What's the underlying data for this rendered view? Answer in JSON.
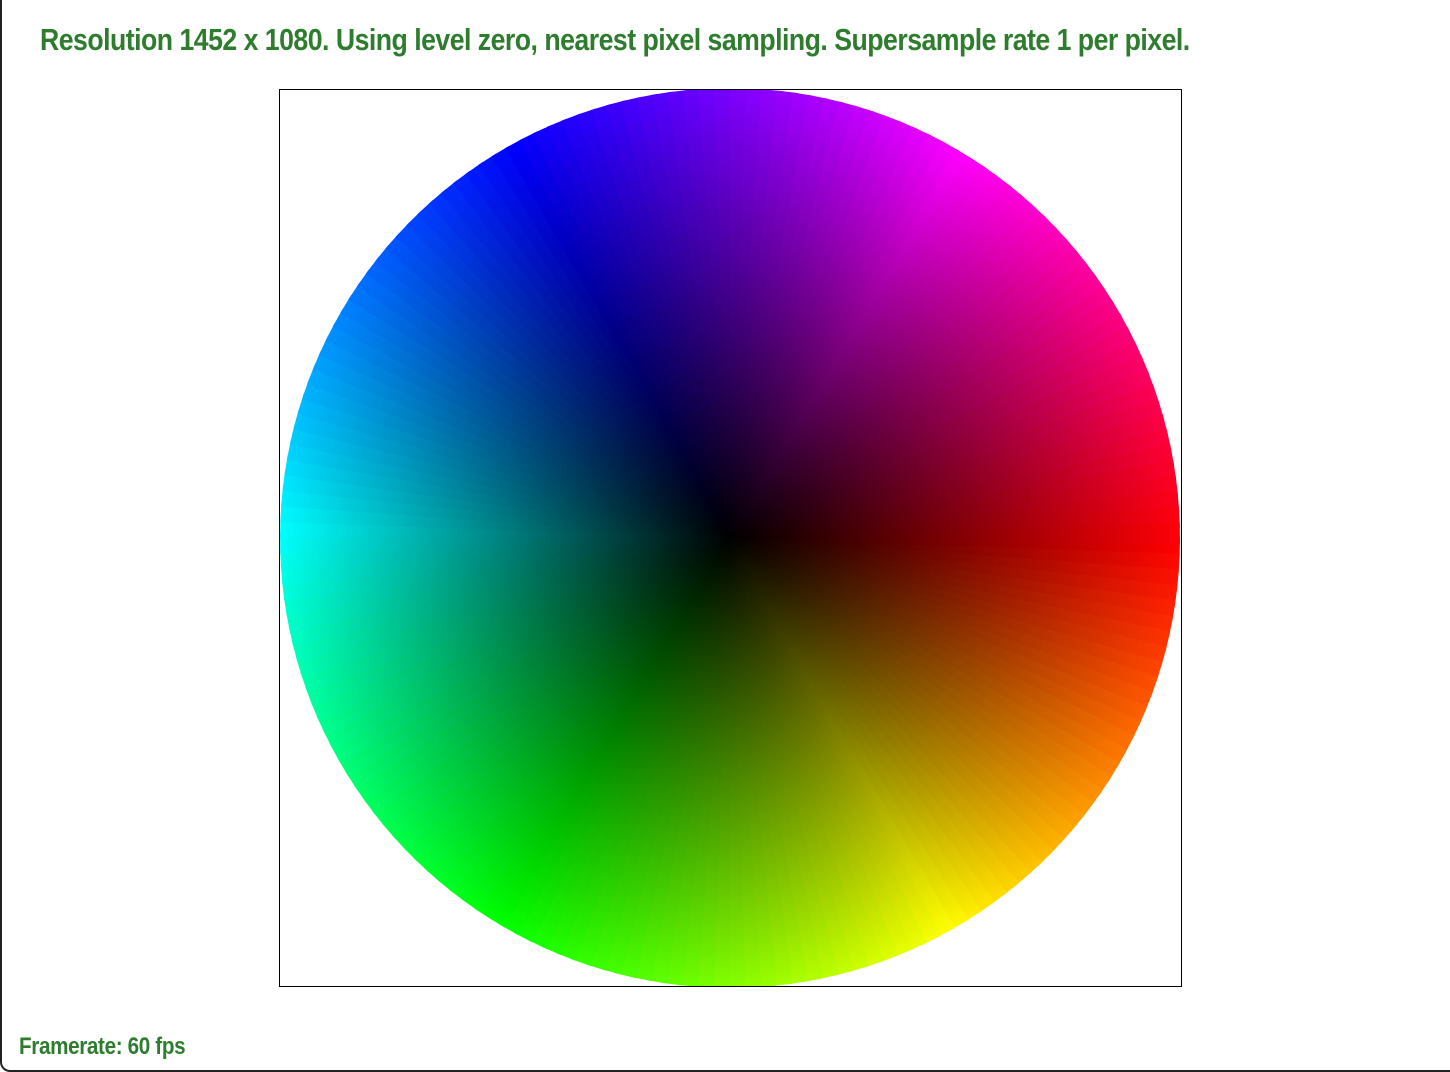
{
  "header": {
    "title": "Resolution 1452 x 1080. Using level zero, nearest pixel sampling. Supersample rate 1 per pixel."
  },
  "render": {
    "content": "color-wheel",
    "hue_start_color": "#ff0000",
    "center_color": "#000000",
    "hue_stops": [
      "#ff0000",
      "#ffff00",
      "#00ff00",
      "#00ffff",
      "#0000ff",
      "#ff00ff",
      "#ff0000"
    ]
  },
  "status": {
    "framerate_text": "Framerate: 60 fps"
  },
  "colors": {
    "text": "#2e7d2e",
    "viewport_border": "#000000",
    "background": "#ffffff"
  }
}
